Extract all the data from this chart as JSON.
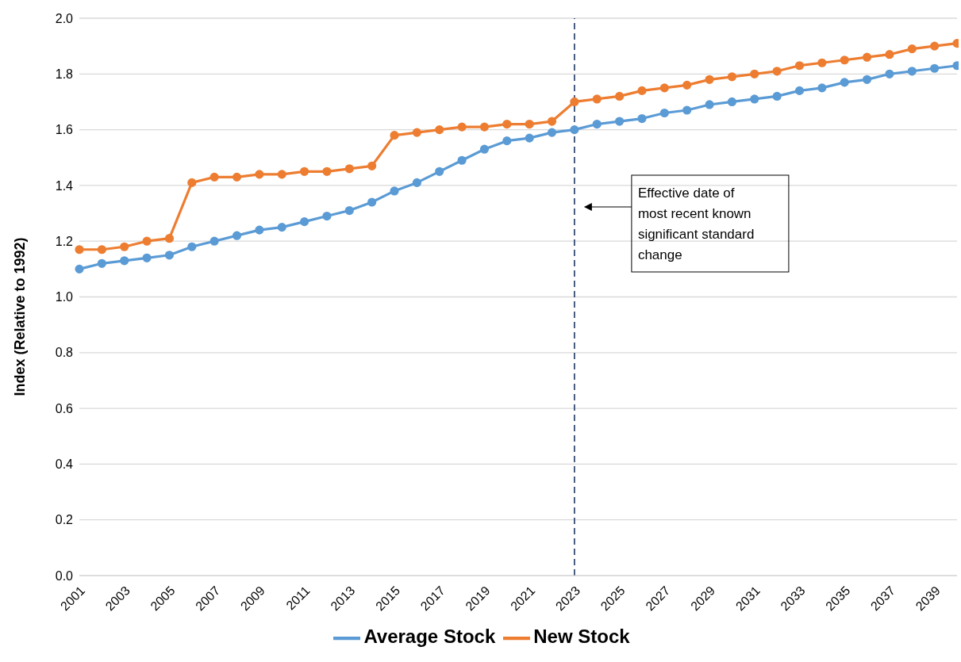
{
  "chart_data": {
    "type": "line",
    "ylabel": "Index (Relative to 1992)",
    "categories": [
      "2001",
      null,
      "2003",
      null,
      "2005",
      null,
      "2007",
      null,
      "2009",
      null,
      "2011",
      null,
      "2013",
      null,
      "2015",
      null,
      "2017",
      null,
      "2019",
      null,
      "2021",
      null,
      "2023",
      null,
      "2025",
      null,
      "2027",
      null,
      "2029",
      null,
      "2031",
      null,
      "2033",
      null,
      "2035",
      null,
      "2037",
      null,
      "2039",
      null
    ],
    "series": [
      {
        "name": "Average Stock",
        "color": "#5b9bd5",
        "values": [
          1.1,
          1.12,
          1.13,
          1.14,
          1.15,
          1.18,
          1.2,
          1.22,
          1.24,
          1.25,
          1.27,
          1.29,
          1.31,
          1.34,
          1.38,
          1.41,
          1.45,
          1.49,
          1.53,
          1.56,
          1.57,
          1.59,
          1.6,
          1.62,
          1.63,
          1.64,
          1.66,
          1.67,
          1.69,
          1.7,
          1.71,
          1.72,
          1.74,
          1.75,
          1.77,
          1.78,
          1.8,
          1.81,
          1.82,
          1.83
        ]
      },
      {
        "name": "New Stock",
        "color": "#ed7d31",
        "values": [
          1.17,
          1.17,
          1.18,
          1.2,
          1.21,
          1.41,
          1.43,
          1.43,
          1.44,
          1.44,
          1.45,
          1.45,
          1.46,
          1.47,
          1.58,
          1.59,
          1.6,
          1.61,
          1.61,
          1.62,
          1.62,
          1.63,
          1.7,
          1.71,
          1.72,
          1.74,
          1.75,
          1.76,
          1.78,
          1.79,
          1.8,
          1.81,
          1.83,
          1.84,
          1.85,
          1.86,
          1.87,
          1.89,
          1.9,
          1.91
        ]
      }
    ],
    "ylim": [
      0,
      2
    ],
    "yticks": [
      {
        "value": 0,
        "label": "0.0"
      },
      {
        "value": 0.2,
        "label": "0.2"
      },
      {
        "value": 0.4,
        "label": "0.4"
      },
      {
        "value": 0.6,
        "label": "0.6"
      },
      {
        "value": 0.8,
        "label": "0.8"
      },
      {
        "value": 1,
        "label": "1.0"
      },
      {
        "value": 1.2,
        "label": "1.2"
      },
      {
        "value": 1.4,
        "label": "1.4"
      },
      {
        "value": 1.6,
        "label": "1.6"
      },
      {
        "value": 1.8,
        "label": "1.8"
      },
      {
        "value": 2,
        "label": "2.0"
      }
    ],
    "grid": "y",
    "legend": "bottom",
    "marker": "circle",
    "line_style": "solid",
    "annotations": [
      "Effective date of most recent known significant standard change"
    ],
    "ref_lines": [
      {
        "axis": "x",
        "value": "2023",
        "color": "#1f3864",
        "line_style": "dashed"
      }
    ]
  }
}
